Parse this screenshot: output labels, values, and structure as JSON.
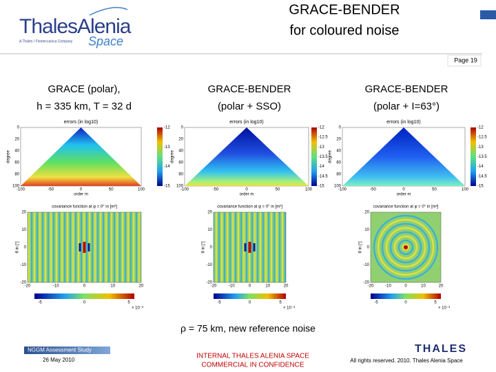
{
  "header": {
    "logo_line1": "ThalesAlenia",
    "logo_tagline": "A Thales / Finmeccanica Company",
    "logo_line2": "Space",
    "title_line1": "GRACE-BENDER",
    "title_line2": "for coloured noise",
    "page": "Page 19"
  },
  "panels": [
    {
      "heading_line1": "GRACE (polar),",
      "heading_line2": "h = 335 km, T = 32 d",
      "error_plot": {
        "title": "errors (in log10)",
        "xlabel": "order m",
        "ylabel": "degree",
        "xticks": [
          -100,
          -50,
          0,
          50,
          100
        ],
        "yticks": [
          0,
          20,
          40,
          60,
          80,
          100
        ],
        "colorbar_ticks": [
          -12,
          -13,
          -14,
          -15
        ]
      },
      "cov_plot": {
        "title": "covariance function at φ = 0° in [m²]",
        "ylabel": "θ in [°]",
        "xticks": [
          -20,
          -10,
          0,
          10,
          20
        ],
        "yticks": [
          20,
          10,
          0,
          -10,
          -20
        ],
        "colorbar_ticks": [
          -5,
          0,
          5
        ],
        "colorbar_unit": "× 10⁻³"
      }
    },
    {
      "heading_line1": "GRACE-BENDER",
      "heading_line2": "(polar + SSO)",
      "error_plot": {
        "title": "errors (in log10)",
        "xlabel": "order m",
        "ylabel": "degree",
        "xticks": [
          -100,
          -50,
          0,
          50,
          100
        ],
        "yticks": [
          0,
          20,
          40,
          60,
          80,
          100
        ],
        "colorbar_ticks": [
          -12,
          -12.5,
          -13,
          -13.5,
          -14,
          -14.5,
          -15
        ]
      },
      "cov_plot": {
        "title": "covariance function at φ = 0° in [m²]",
        "ylabel": "θ in [°]",
        "xticks": [
          -20,
          -10,
          0,
          10,
          20
        ],
        "yticks": [
          20,
          10,
          0,
          -10,
          -20
        ],
        "colorbar_ticks": [
          -5,
          0,
          5
        ],
        "colorbar_unit": "× 10⁻³"
      }
    },
    {
      "heading_line1": "GRACE-BENDER",
      "heading_line2": "(polar + I=63°)",
      "error_plot": {
        "title": "errors (in log10)",
        "xlabel": "order m",
        "ylabel": "degree",
        "xticks": [
          -100,
          -50,
          0,
          50,
          100
        ],
        "yticks": [
          0,
          20,
          40,
          60,
          80,
          100
        ],
        "colorbar_ticks": [
          -12,
          -12.5,
          -13,
          -13.5,
          -14,
          -14.5,
          -15
        ]
      },
      "cov_plot": {
        "title": "covariance function at φ = 0° in [m²]",
        "ylabel": "θ in [°]",
        "xticks": [
          -20,
          -10,
          0,
          10,
          20
        ],
        "yticks": [
          20,
          10,
          0,
          -10,
          -20
        ],
        "colorbar_ticks": [
          -5,
          0,
          5
        ],
        "colorbar_unit": "× 10⁻³"
      }
    }
  ],
  "caption": "ρ = 75 km, new reference noise",
  "footer": {
    "study": "NGGM Assessment Study",
    "date": "26 May 2010",
    "confidential_line1": "INTERNAL THALES ALENIA SPACE",
    "confidential_line2": "COMMERCIAL IN CONFIDENCE",
    "brand": "THALES",
    "rights": "All rights reserved. 2010. Thales Alenia Space"
  }
}
